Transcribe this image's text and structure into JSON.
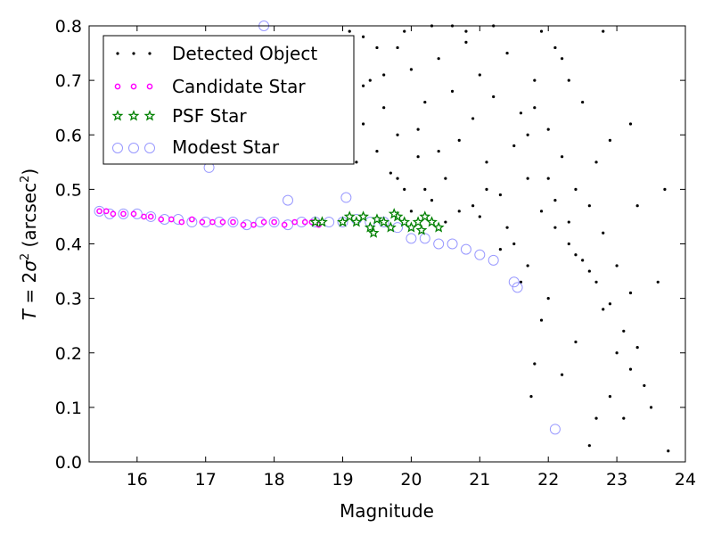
{
  "chart_data": {
    "type": "scatter",
    "xlabel": "Magnitude",
    "ylabel_prefix": "T",
    "ylabel_eq": " = 2",
    "ylabel_sigma": "σ",
    "ylabel_sup": "2",
    "ylabel_open": " (arcsec",
    "ylabel_close": ")",
    "xlim": [
      15.3,
      24.0
    ],
    "ylim": [
      0.0,
      0.8
    ],
    "xticks": [
      16,
      17,
      18,
      19,
      20,
      21,
      22,
      23,
      24
    ],
    "yticks": [
      0.0,
      0.1,
      0.2,
      0.3,
      0.4,
      0.5,
      0.6,
      0.7,
      0.8
    ],
    "grid": false,
    "legend_position": "top-left",
    "colors": {
      "detected": "#000000",
      "candidate": "#ff00ff",
      "psf": "#008000",
      "modest": "#9999ff"
    },
    "series": [
      {
        "name": "Detected Object",
        "marker": "dot",
        "points": [
          [
            19.1,
            0.79
          ],
          [
            19.3,
            0.78
          ],
          [
            19.5,
            0.76
          ],
          [
            19.4,
            0.7
          ],
          [
            19.6,
            0.65
          ],
          [
            19.3,
            0.62
          ],
          [
            19.0,
            0.58
          ],
          [
            19.2,
            0.55
          ],
          [
            19.5,
            0.57
          ],
          [
            19.7,
            0.53
          ],
          [
            19.8,
            0.6
          ],
          [
            19.9,
            0.5
          ],
          [
            20.0,
            0.72
          ],
          [
            20.1,
            0.56
          ],
          [
            20.2,
            0.66
          ],
          [
            20.3,
            0.48
          ],
          [
            20.4,
            0.74
          ],
          [
            20.5,
            0.52
          ],
          [
            20.6,
            0.68
          ],
          [
            20.7,
            0.59
          ],
          [
            20.8,
            0.77
          ],
          [
            20.9,
            0.63
          ],
          [
            21.0,
            0.71
          ],
          [
            21.1,
            0.55
          ],
          [
            21.2,
            0.67
          ],
          [
            21.3,
            0.49
          ],
          [
            21.4,
            0.75
          ],
          [
            21.5,
            0.58
          ],
          [
            21.6,
            0.64
          ],
          [
            21.7,
            0.52
          ],
          [
            21.8,
            0.7
          ],
          [
            21.9,
            0.46
          ],
          [
            22.0,
            0.61
          ],
          [
            22.1,
            0.43
          ],
          [
            22.2,
            0.56
          ],
          [
            22.3,
            0.4
          ],
          [
            22.4,
            0.5
          ],
          [
            22.5,
            0.37
          ],
          [
            22.6,
            0.47
          ],
          [
            22.7,
            0.33
          ],
          [
            22.8,
            0.42
          ],
          [
            22.9,
            0.29
          ],
          [
            23.0,
            0.36
          ],
          [
            23.1,
            0.24
          ],
          [
            23.2,
            0.31
          ],
          [
            23.3,
            0.21
          ],
          [
            23.4,
            0.14
          ],
          [
            23.5,
            0.1
          ],
          [
            23.6,
            0.33
          ],
          [
            23.7,
            0.5
          ],
          [
            23.75,
            0.02
          ],
          [
            22.6,
            0.03
          ],
          [
            22.7,
            0.08
          ],
          [
            22.9,
            0.12
          ],
          [
            23.1,
            0.08
          ],
          [
            22.2,
            0.16
          ],
          [
            22.4,
            0.22
          ],
          [
            21.8,
            0.18
          ],
          [
            21.75,
            0.12
          ],
          [
            21.9,
            0.26
          ],
          [
            22.0,
            0.3
          ],
          [
            21.6,
            0.33
          ],
          [
            21.7,
            0.36
          ],
          [
            20.8,
            0.79
          ],
          [
            20.6,
            0.8
          ],
          [
            19.9,
            0.79
          ],
          [
            19.8,
            0.52
          ],
          [
            20.9,
            0.47
          ],
          [
            21.0,
            0.45
          ],
          [
            21.1,
            0.5
          ],
          [
            22.1,
            0.76
          ],
          [
            21.2,
            0.8
          ],
          [
            21.9,
            0.79
          ],
          [
            22.8,
            0.79
          ],
          [
            23.2,
            0.62
          ],
          [
            22.9,
            0.59
          ],
          [
            23.3,
            0.47
          ],
          [
            22.5,
            0.66
          ],
          [
            22.3,
            0.7
          ],
          [
            22.2,
            0.74
          ],
          [
            20.0,
            0.46
          ],
          [
            20.2,
            0.5
          ],
          [
            20.5,
            0.44
          ],
          [
            20.7,
            0.46
          ],
          [
            21.4,
            0.43
          ],
          [
            21.5,
            0.4
          ],
          [
            21.3,
            0.39
          ],
          [
            22.7,
            0.55
          ],
          [
            19.3,
            0.69
          ],
          [
            19.6,
            0.71
          ],
          [
            19.8,
            0.76
          ],
          [
            20.3,
            0.8
          ],
          [
            20.1,
            0.61
          ],
          [
            20.4,
            0.57
          ],
          [
            21.7,
            0.6
          ],
          [
            21.8,
            0.65
          ],
          [
            22.0,
            0.52
          ],
          [
            22.1,
            0.48
          ],
          [
            22.3,
            0.44
          ],
          [
            22.4,
            0.38
          ],
          [
            22.6,
            0.35
          ],
          [
            22.8,
            0.28
          ],
          [
            23.0,
            0.2
          ],
          [
            23.2,
            0.17
          ]
        ]
      },
      {
        "name": "Candidate Star",
        "marker": "circle-small",
        "points": [
          [
            15.45,
            0.46
          ],
          [
            15.55,
            0.46
          ],
          [
            15.65,
            0.455
          ],
          [
            15.8,
            0.455
          ],
          [
            15.95,
            0.455
          ],
          [
            16.1,
            0.45
          ],
          [
            16.2,
            0.45
          ],
          [
            16.35,
            0.445
          ],
          [
            16.5,
            0.445
          ],
          [
            16.65,
            0.44
          ],
          [
            16.8,
            0.445
          ],
          [
            16.95,
            0.44
          ],
          [
            17.1,
            0.44
          ],
          [
            17.25,
            0.44
          ],
          [
            17.4,
            0.44
          ],
          [
            17.55,
            0.435
          ],
          [
            17.7,
            0.435
          ],
          [
            17.85,
            0.44
          ],
          [
            18.0,
            0.44
          ],
          [
            18.15,
            0.435
          ],
          [
            18.3,
            0.44
          ],
          [
            18.45,
            0.44
          ],
          [
            18.55,
            0.44
          ],
          [
            18.65,
            0.435
          ]
        ]
      },
      {
        "name": "PSF Star",
        "marker": "star",
        "points": [
          [
            18.6,
            0.44
          ],
          [
            18.7,
            0.44
          ],
          [
            19.0,
            0.44
          ],
          [
            19.1,
            0.45
          ],
          [
            19.2,
            0.44
          ],
          [
            19.3,
            0.45
          ],
          [
            19.4,
            0.43
          ],
          [
            19.5,
            0.445
          ],
          [
            19.6,
            0.44
          ],
          [
            19.7,
            0.43
          ],
          [
            19.8,
            0.45
          ],
          [
            19.9,
            0.44
          ],
          [
            20.0,
            0.43
          ],
          [
            20.1,
            0.44
          ],
          [
            20.2,
            0.45
          ],
          [
            20.3,
            0.44
          ],
          [
            20.4,
            0.43
          ],
          [
            19.45,
            0.42
          ],
          [
            19.75,
            0.455
          ],
          [
            20.15,
            0.425
          ]
        ]
      },
      {
        "name": "Modest Star",
        "marker": "circle-large",
        "points": [
          [
            15.45,
            0.46
          ],
          [
            15.6,
            0.455
          ],
          [
            15.8,
            0.455
          ],
          [
            16.0,
            0.455
          ],
          [
            16.2,
            0.45
          ],
          [
            16.4,
            0.445
          ],
          [
            16.6,
            0.445
          ],
          [
            16.8,
            0.44
          ],
          [
            17.0,
            0.44
          ],
          [
            17.2,
            0.44
          ],
          [
            17.4,
            0.44
          ],
          [
            17.6,
            0.435
          ],
          [
            17.8,
            0.44
          ],
          [
            18.0,
            0.44
          ],
          [
            18.2,
            0.435
          ],
          [
            18.4,
            0.44
          ],
          [
            18.6,
            0.44
          ],
          [
            18.8,
            0.44
          ],
          [
            19.0,
            0.44
          ],
          [
            19.2,
            0.445
          ],
          [
            19.4,
            0.44
          ],
          [
            19.6,
            0.44
          ],
          [
            19.8,
            0.43
          ],
          [
            20.0,
            0.41
          ],
          [
            20.2,
            0.41
          ],
          [
            20.4,
            0.4
          ],
          [
            20.6,
            0.4
          ],
          [
            20.8,
            0.39
          ],
          [
            21.0,
            0.38
          ],
          [
            21.2,
            0.37
          ],
          [
            21.5,
            0.33
          ],
          [
            21.55,
            0.32
          ],
          [
            17.85,
            0.8
          ],
          [
            17.05,
            0.54
          ],
          [
            18.2,
            0.48
          ],
          [
            19.05,
            0.485
          ],
          [
            22.1,
            0.06
          ]
        ]
      }
    ]
  }
}
